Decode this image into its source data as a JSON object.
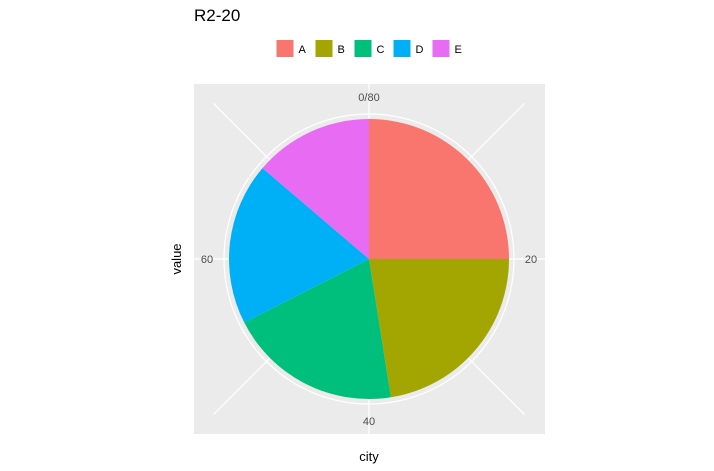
{
  "chart_data": {
    "type": "pie",
    "title": "R2-20",
    "xlabel": "city",
    "ylabel": "value",
    "theta_range": [
      0,
      80
    ],
    "theta_ticks": [
      {
        "value": 0,
        "label": "0/80"
      },
      {
        "value": 20,
        "label": "20"
      },
      {
        "value": 40,
        "label": "40"
      },
      {
        "value": 60,
        "label": "60"
      }
    ],
    "grid": true,
    "legend_position": "top",
    "categories": [
      "A",
      "B",
      "C",
      "D",
      "E"
    ],
    "values": [
      20,
      18,
      16,
      15,
      11
    ],
    "colors": [
      "#F8766D",
      "#A3A500",
      "#00BF7D",
      "#00B0F6",
      "#E76BF3"
    ]
  }
}
